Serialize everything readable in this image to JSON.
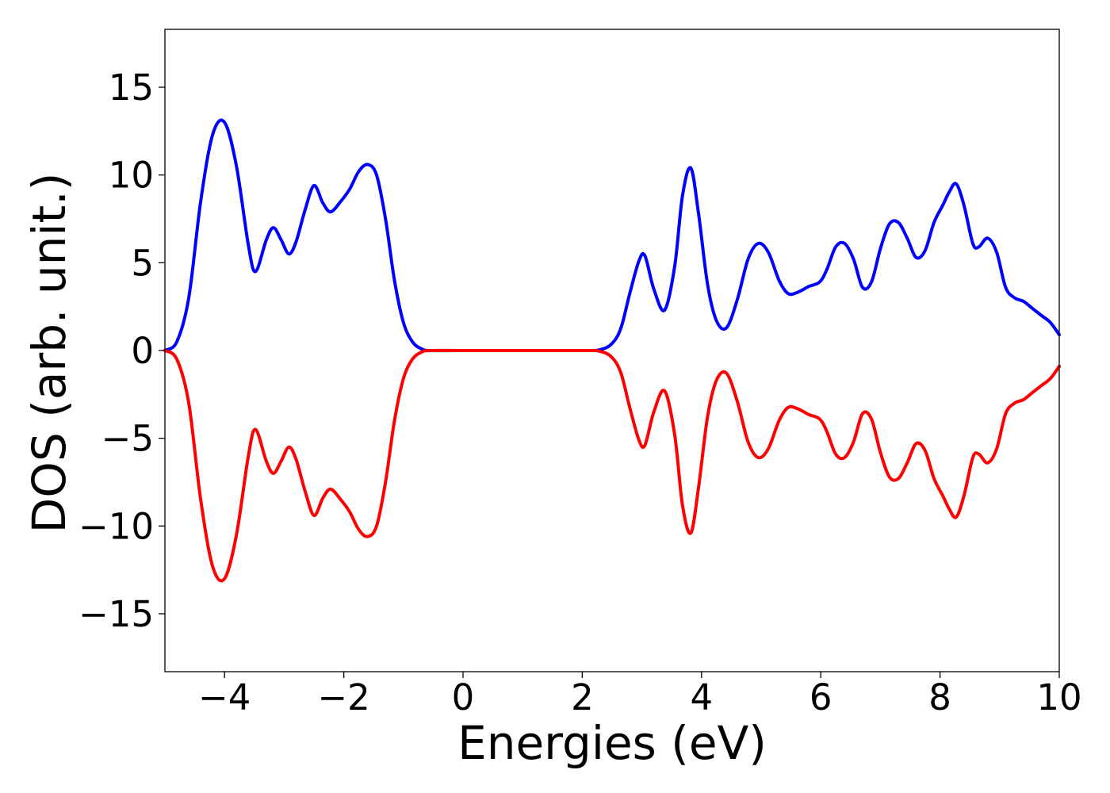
{
  "chart_data": {
    "type": "line",
    "xlabel": "Energies (eV)",
    "ylabel": "DOS (arb. unit.)",
    "xlim": [
      -5,
      10
    ],
    "ylim": [
      -18.3,
      18.3
    ],
    "xticks": [
      -4,
      -2,
      0,
      2,
      4,
      6,
      8,
      10
    ],
    "xtick_labels": [
      "−4",
      "−2",
      "0",
      "2",
      "4",
      "6",
      "8",
      "10"
    ],
    "yticks": [
      -15,
      -10,
      -5,
      0,
      5,
      10,
      15
    ],
    "ytick_labels": [
      "−15",
      "−10",
      "−5",
      "0",
      "5",
      "10",
      "15"
    ],
    "grid": false,
    "legend": "none",
    "series": [
      {
        "color": "#0000ff",
        "x": [
          -5.0,
          -4.8,
          -4.6,
          -4.4,
          -4.2,
          -4.0,
          -3.8,
          -3.6,
          -3.48,
          -3.3,
          -3.18,
          -3.05,
          -2.92,
          -2.8,
          -2.65,
          -2.5,
          -2.35,
          -2.22,
          -2.05,
          -1.9,
          -1.75,
          -1.6,
          -1.45,
          -1.3,
          -1.15,
          -1.0,
          -0.85,
          -0.7,
          -0.55,
          0.0,
          1.0,
          2.0,
          2.3,
          2.5,
          2.65,
          2.8,
          2.95,
          3.05,
          3.2,
          3.38,
          3.55,
          3.68,
          3.82,
          3.95,
          4.1,
          4.25,
          4.42,
          4.6,
          4.78,
          4.95,
          5.12,
          5.3,
          5.45,
          5.6,
          5.8,
          5.98,
          6.1,
          6.25,
          6.4,
          6.55,
          6.7,
          6.85,
          7.0,
          7.15,
          7.3,
          7.45,
          7.6,
          7.75,
          7.9,
          8.05,
          8.15,
          8.27,
          8.4,
          8.55,
          8.65,
          8.8,
          8.95,
          9.1,
          9.25,
          9.4,
          9.55,
          9.7,
          9.85,
          10.0
        ],
        "y": [
          0.0,
          0.5,
          3.0,
          8.5,
          12.3,
          13.0,
          10.5,
          6.0,
          4.5,
          6.3,
          7.0,
          6.3,
          5.5,
          6.2,
          8.0,
          9.4,
          8.4,
          7.9,
          8.5,
          9.2,
          10.2,
          10.6,
          10.0,
          7.5,
          4.0,
          1.6,
          0.5,
          0.1,
          0.0,
          0.0,
          0.0,
          0.0,
          0.05,
          0.4,
          1.3,
          3.3,
          5.1,
          5.4,
          3.5,
          2.3,
          4.8,
          8.8,
          10.4,
          7.8,
          3.8,
          1.7,
          1.3,
          2.9,
          5.2,
          6.1,
          5.6,
          4.0,
          3.25,
          3.3,
          3.65,
          3.9,
          4.6,
          5.9,
          6.1,
          5.2,
          3.6,
          3.9,
          5.8,
          7.2,
          7.3,
          6.4,
          5.3,
          5.7,
          7.3,
          8.3,
          9.0,
          9.5,
          8.3,
          6.1,
          5.9,
          6.4,
          5.6,
          3.6,
          3.0,
          2.8,
          2.4,
          2.0,
          1.6,
          0.9
        ]
      },
      {
        "color": "#ff0000",
        "x": [
          -5.0,
          -4.8,
          -4.6,
          -4.4,
          -4.2,
          -4.0,
          -3.8,
          -3.6,
          -3.48,
          -3.3,
          -3.18,
          -3.05,
          -2.92,
          -2.8,
          -2.65,
          -2.5,
          -2.35,
          -2.22,
          -2.05,
          -1.9,
          -1.75,
          -1.6,
          -1.45,
          -1.3,
          -1.15,
          -1.0,
          -0.85,
          -0.7,
          -0.55,
          0.0,
          1.0,
          2.0,
          2.3,
          2.5,
          2.65,
          2.8,
          2.95,
          3.05,
          3.2,
          3.38,
          3.55,
          3.68,
          3.82,
          3.95,
          4.1,
          4.25,
          4.42,
          4.6,
          4.78,
          4.95,
          5.12,
          5.3,
          5.45,
          5.6,
          5.8,
          5.98,
          6.1,
          6.25,
          6.4,
          6.55,
          6.7,
          6.85,
          7.0,
          7.15,
          7.3,
          7.45,
          7.6,
          7.75,
          7.9,
          8.05,
          8.15,
          8.27,
          8.4,
          8.55,
          8.65,
          8.8,
          8.95,
          9.1,
          9.25,
          9.4,
          9.55,
          9.7,
          9.85,
          10.0
        ],
        "y": [
          0.0,
          -0.5,
          -3.0,
          -8.5,
          -12.3,
          -13.0,
          -10.5,
          -6.0,
          -4.5,
          -6.3,
          -7.0,
          -6.3,
          -5.5,
          -6.2,
          -8.0,
          -9.4,
          -8.4,
          -7.9,
          -8.5,
          -9.2,
          -10.2,
          -10.6,
          -10.0,
          -7.5,
          -4.0,
          -1.6,
          -0.5,
          -0.1,
          0.0,
          0.0,
          0.0,
          0.0,
          -0.05,
          -0.4,
          -1.3,
          -3.3,
          -5.1,
          -5.4,
          -3.5,
          -2.3,
          -4.8,
          -8.8,
          -10.4,
          -7.8,
          -3.8,
          -1.7,
          -1.3,
          -2.9,
          -5.2,
          -6.1,
          -5.6,
          -4.0,
          -3.25,
          -3.3,
          -3.65,
          -3.9,
          -4.6,
          -5.9,
          -6.1,
          -5.2,
          -3.6,
          -3.9,
          -5.8,
          -7.2,
          -7.3,
          -6.4,
          -5.3,
          -5.7,
          -7.3,
          -8.3,
          -9.0,
          -9.5,
          -8.3,
          -6.1,
          -5.9,
          -6.4,
          -5.6,
          -3.6,
          -3.0,
          -2.8,
          -2.4,
          -2.0,
          -1.6,
          -0.9
        ]
      }
    ]
  }
}
